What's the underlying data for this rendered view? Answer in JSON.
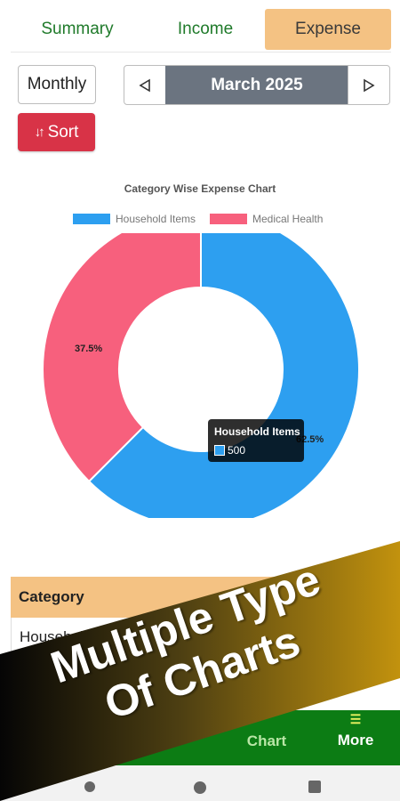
{
  "tabs": [
    {
      "label": "Summary"
    },
    {
      "label": "Income"
    },
    {
      "label": "Expense"
    }
  ],
  "filter": {
    "period": "Monthly",
    "month": "March 2025",
    "prev_icon": "triangle-left-icon",
    "next_icon": "triangle-right-icon",
    "sort_label": "Sort",
    "sort_icon": "sort-arrows-icon"
  },
  "chart_data": {
    "type": "pie",
    "title": "Category Wise Expense Chart",
    "categories": [
      "Household Items",
      "Medical Health"
    ],
    "values": [
      62.5,
      37.5
    ],
    "value_labels": [
      "62.5%",
      "37.5%"
    ],
    "colors": [
      "#2d9ff0",
      "#f7607d"
    ],
    "legend": "top",
    "tooltip": {
      "title": "Household Items",
      "value": "500"
    }
  },
  "table": {
    "header": "Category",
    "first_row": "Household Items"
  },
  "bottom_nav": {
    "chart_label": "Chart",
    "more_label": "More",
    "more_icon": "list-icon"
  },
  "banner": {
    "line1": "Multiple Type",
    "line2": "Of Charts"
  },
  "colors": {
    "accent_tab": "#f4c283",
    "tab_text": "#1f7a2a",
    "sort_button": "#d83347",
    "month_bar": "#6b7480",
    "nav_bar": "#0c7c14"
  }
}
